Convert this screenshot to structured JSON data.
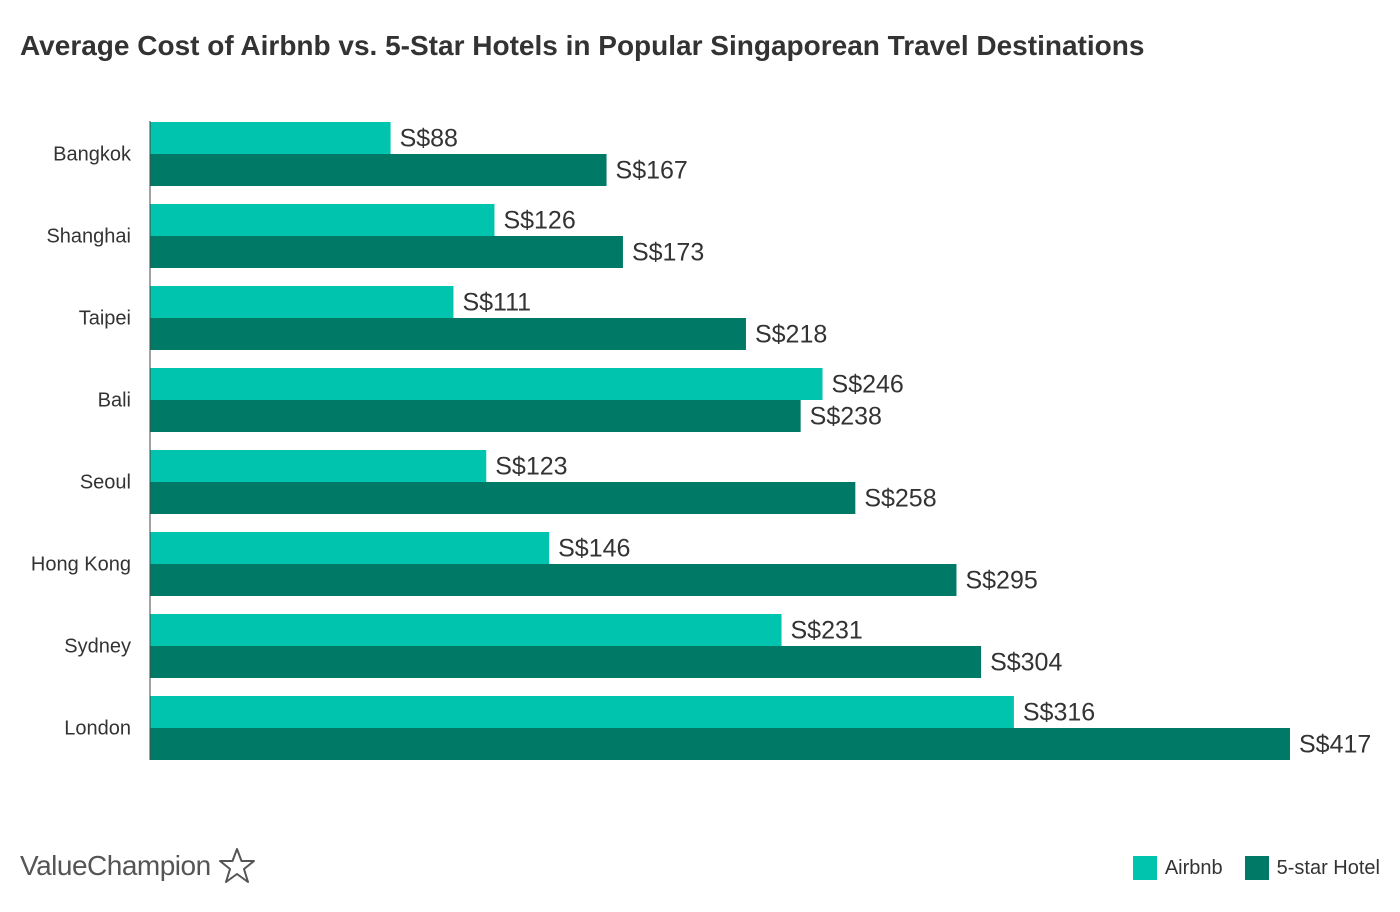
{
  "chart_data": {
    "type": "bar",
    "orientation": "horizontal",
    "title": "Average Cost of Airbnb vs. 5-Star Hotels in Popular Singaporean Travel Destinations",
    "categories": [
      "Bangkok",
      "Shanghai",
      "Taipei",
      "Bali",
      "Seoul",
      "Hong Kong",
      "Sydney",
      "London"
    ],
    "series": [
      {
        "name": "Airbnb",
        "color": "#00c4ad",
        "values": [
          88,
          126,
          111,
          246,
          123,
          146,
          231,
          316
        ],
        "labels": [
          "S$88",
          "S$126",
          "S$111",
          "S$246",
          "S$123",
          "S$146",
          "S$231",
          "S$316"
        ]
      },
      {
        "name": "5-star Hotel",
        "color": "#007a66",
        "values": [
          167,
          173,
          218,
          238,
          258,
          295,
          304,
          417
        ],
        "labels": [
          "S$167",
          "S$173",
          "S$218",
          "S$238",
          "S$258",
          "S$295",
          "S$304",
          "S$417"
        ]
      }
    ],
    "xlim": [
      0,
      417
    ],
    "grid": false,
    "legend": "bottom-right"
  },
  "branding": {
    "logo_text": "ValueChampion",
    "logo_icon": "star-outline-icon"
  }
}
